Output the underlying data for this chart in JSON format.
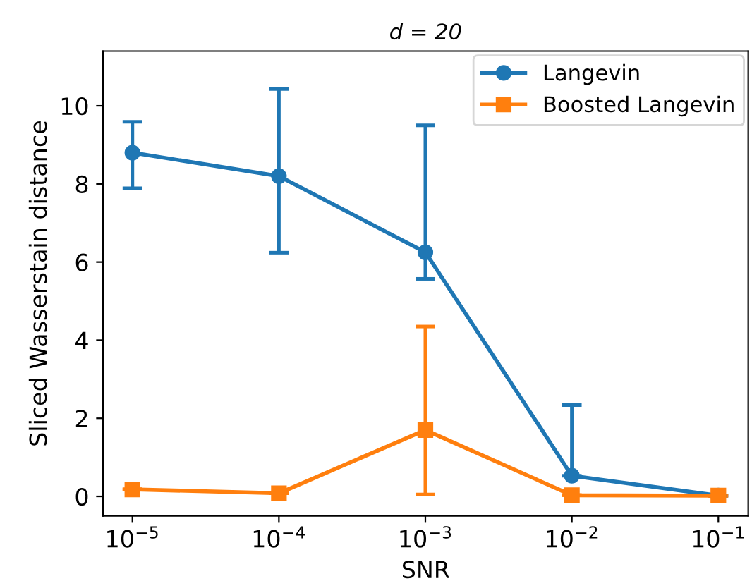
{
  "chart_data": {
    "type": "line",
    "title": "d = 20",
    "xlabel": "SNR",
    "ylabel": "Sliced Wasserstain distance",
    "x": [
      1e-05,
      0.0001,
      0.001,
      0.01,
      0.1
    ],
    "series": [
      {
        "name": "Langevin",
        "color": "#1f77b4",
        "marker": "circle",
        "values": [
          8.8,
          8.2,
          6.25,
          0.53,
          0.02
        ],
        "errors": [
          [
            7.89,
            9.59
          ],
          [
            6.24,
            10.43
          ],
          [
            5.57,
            9.5
          ],
          [
            0.53,
            2.34
          ],
          null
        ]
      },
      {
        "name": "Boosted Langevin",
        "color": "#ff7f0e",
        "marker": "square",
        "values": [
          0.18,
          0.08,
          1.7,
          0.03,
          0.02
        ],
        "errors": [
          null,
          null,
          [
            0.05,
            4.35
          ],
          null,
          null
        ]
      }
    ],
    "log": "x",
    "xlim": [
      6.3e-06,
      0.16
    ],
    "xticks": [
      {
        "value": 1e-05,
        "label": "10$^{−5}$"
      },
      {
        "value": 0.0001,
        "label": "10$^{−4}$"
      },
      {
        "value": 0.001,
        "label": "10$^{−3}$"
      },
      {
        "value": 0.01,
        "label": "10$^{−2}$"
      },
      {
        "value": 0.1,
        "label": "10$^{−1}$"
      }
    ],
    "ylim": [
      -0.5,
      11.4
    ],
    "yticks": [
      0,
      2,
      4,
      6,
      8,
      10
    ],
    "legend": "top right",
    "grid": false,
    "line_style": "solid"
  }
}
